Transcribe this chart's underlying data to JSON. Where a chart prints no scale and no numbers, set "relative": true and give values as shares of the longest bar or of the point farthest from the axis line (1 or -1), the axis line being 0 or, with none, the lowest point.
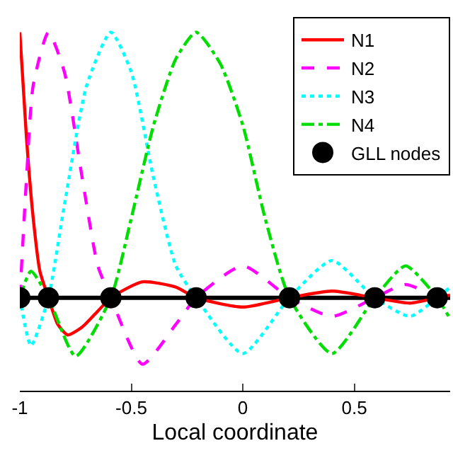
{
  "chart_data": {
    "type": "line",
    "xlabel": "Local coordinate",
    "relative": true,
    "xlim": [
      -1,
      0.93
    ],
    "xticks": [
      -1,
      -0.5,
      0,
      0.5
    ],
    "grid": false,
    "legend": "top right",
    "ref_lines": [
      {
        "axis": "y",
        "value": 0,
        "color": "#000000"
      }
    ],
    "series": [
      {
        "name": "N1",
        "color": "#ff0000",
        "line_style": "solid",
        "x": [
          -1,
          -0.97,
          -0.94,
          -0.91,
          -0.8717,
          -0.83,
          -0.785,
          -0.72,
          -0.65,
          -0.5917,
          -0.45,
          -0.3,
          -0.2093,
          0,
          0.2093,
          0.4,
          0.5917,
          0.75,
          0.8717,
          0.93
        ],
        "values": [
          1,
          0.6,
          0.3,
          0.1,
          0,
          -0.1,
          -0.14,
          -0.11,
          -0.05,
          0,
          0.06,
          0.04,
          0,
          -0.035,
          0,
          0.025,
          0,
          -0.02,
          0,
          0.01
        ]
      },
      {
        "name": "N2",
        "color": "#ff00ff",
        "line_style": "dashed",
        "x": [
          -1,
          -0.97,
          -0.94,
          -0.8717,
          -0.8,
          -0.72,
          -0.65,
          -0.5917,
          -0.45,
          -0.3,
          -0.2093,
          0,
          0.2093,
          0.4,
          0.5917,
          0.73,
          0.8717
        ],
        "values": [
          0,
          0.45,
          0.8,
          1,
          0.85,
          0.45,
          0.12,
          0,
          -0.25,
          -0.1,
          0,
          0.12,
          0,
          -0.07,
          0,
          0.05,
          0
        ]
      },
      {
        "name": "N3",
        "color": "#00ffff",
        "line_style": "dotted",
        "x": [
          -1,
          -0.95,
          -0.8717,
          -0.8,
          -0.7,
          -0.5917,
          -0.5,
          -0.4,
          -0.3,
          -0.2093,
          0,
          0.2093,
          0.4,
          0.5917,
          0.75,
          0.8717,
          0.93
        ],
        "values": [
          0,
          -0.18,
          0,
          0.35,
          0.8,
          1,
          0.85,
          0.45,
          0.12,
          0,
          -0.21,
          0,
          0.14,
          0,
          -0.07,
          0,
          0.04
        ]
      },
      {
        "name": "N4",
        "color": "#00dd00",
        "line_style": "dashdot",
        "x": [
          -1,
          -0.95,
          -0.8717,
          -0.75,
          -0.5917,
          -0.5,
          -0.4,
          -0.3,
          -0.2093,
          -0.1,
          0,
          0.1,
          0.2093,
          0.4,
          0.5917,
          0.73,
          0.8717,
          0.93
        ],
        "values": [
          0,
          0.1,
          0,
          -0.22,
          0,
          0.3,
          0.65,
          0.9,
          1,
          0.88,
          0.65,
          0.3,
          0,
          -0.21,
          0,
          0.12,
          0,
          -0.08
        ]
      },
      {
        "name": "GLL nodes",
        "type": "scatter",
        "marker": "circle",
        "color": "#000000",
        "x": [
          -1,
          -0.8717,
          -0.5917,
          -0.2093,
          0.2093,
          0.5917,
          0.8717
        ],
        "values": [
          0,
          0,
          0,
          0,
          0,
          0,
          0
        ]
      }
    ]
  }
}
